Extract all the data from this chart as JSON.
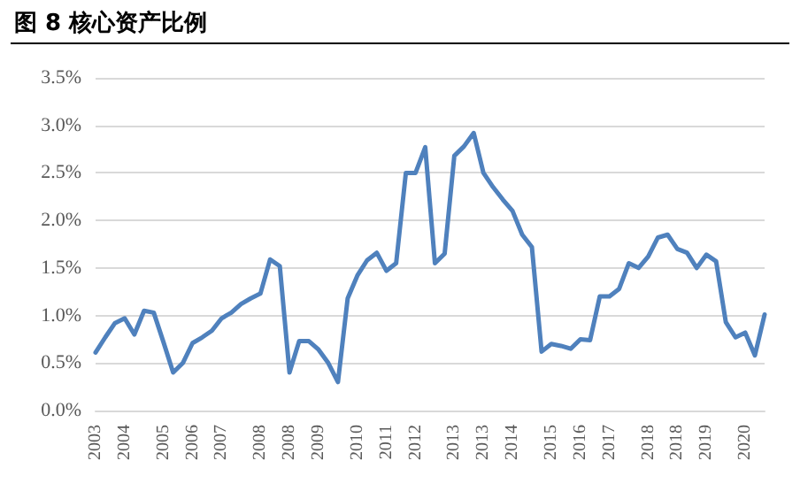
{
  "chart_data": {
    "type": "line",
    "title": "图 8 核心资产比例",
    "categories": [
      "2003",
      null,
      null,
      "2004",
      null,
      null,
      null,
      "2005",
      null,
      null,
      "2006",
      null,
      null,
      "2007",
      null,
      null,
      null,
      "2008",
      null,
      null,
      "2008",
      null,
      null,
      "2009",
      null,
      null,
      null,
      "2010",
      null,
      null,
      "2011",
      null,
      null,
      "2012",
      null,
      null,
      null,
      "2013",
      null,
      null,
      "2013",
      null,
      null,
      "2014",
      null,
      null,
      null,
      "2015",
      null,
      null,
      "2016",
      null,
      null,
      "2017",
      null,
      null,
      null,
      "2018",
      null,
      null,
      "2018",
      null,
      null,
      "2019",
      null,
      null,
      null,
      "2020",
      null,
      null
    ],
    "series": [
      {
        "color": "#4f81bd",
        "values": [
          0.61,
          0.77,
          0.92,
          0.97,
          0.8,
          1.05,
          1.03,
          0.72,
          0.4,
          0.5,
          0.71,
          0.77,
          0.84,
          0.97,
          1.03,
          1.12,
          1.18,
          1.23,
          1.59,
          1.52,
          0.4,
          0.73,
          0.73,
          0.64,
          0.5,
          0.3,
          1.18,
          1.42,
          1.58,
          1.66,
          1.47,
          1.55,
          2.5,
          2.5,
          2.77,
          1.55,
          1.65,
          2.68,
          2.78,
          2.92,
          2.5,
          2.35,
          2.22,
          2.1,
          1.85,
          1.72,
          0.62,
          0.7,
          0.68,
          0.65,
          0.75,
          0.74,
          1.2,
          1.2,
          1.28,
          1.55,
          1.5,
          1.62,
          1.82,
          1.85,
          1.7,
          1.66,
          1.5,
          1.64,
          1.57,
          0.93,
          0.77,
          0.82,
          0.58,
          1.01
        ]
      }
    ],
    "ylim": [
      0,
      3.5
    ],
    "yticks": [
      {
        "value": 0,
        "label": "0.0%"
      },
      {
        "value": 0.5,
        "label": "0.5%"
      },
      {
        "value": 1,
        "label": "1.0%"
      },
      {
        "value": 1.5,
        "label": "1.5%"
      },
      {
        "value": 2,
        "label": "2.0%"
      },
      {
        "value": 2.5,
        "label": "2.5%"
      },
      {
        "value": 3,
        "label": "3.0%"
      },
      {
        "value": 3.5,
        "label": "3.5%"
      }
    ],
    "grid": "y",
    "marker": "none",
    "line_style": "solid"
  }
}
